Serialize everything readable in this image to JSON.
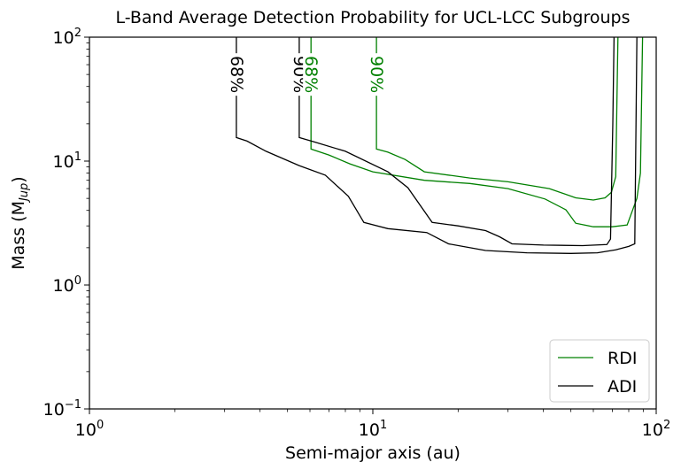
{
  "chart_data": {
    "type": "line",
    "title": "L-Band Average Detection Probability for UCL-LCC Subgroups",
    "xlabel": "Semi-major axis (au)",
    "ylabel_main": "Mass (M",
    "ylabel_sub": "Jup",
    "ylabel_end": ")",
    "xscale": "log",
    "yscale": "log",
    "xlim": [
      1,
      100
    ],
    "ylim": [
      0.1,
      100
    ],
    "x_ticks": [
      {
        "value": 1,
        "base": "10",
        "exp": "0"
      },
      {
        "value": 10,
        "base": "10",
        "exp": "1"
      },
      {
        "value": 100,
        "base": "10",
        "exp": "2"
      }
    ],
    "y_ticks": [
      {
        "value": 0.1,
        "base": "10",
        "exp": "−1"
      },
      {
        "value": 1,
        "base": "10",
        "exp": "0"
      },
      {
        "value": 10,
        "base": "10",
        "exp": "1"
      },
      {
        "value": 100,
        "base": "10",
        "exp": "2"
      }
    ],
    "legend": {
      "placement": "lower-right",
      "entries": [
        {
          "name": "RDI",
          "color": "#008000"
        },
        {
          "name": "ADI",
          "color": "#000000"
        }
      ]
    },
    "series": [
      {
        "name": "RDI",
        "level": "68%",
        "color": "#008000",
        "points": [
          [
            6.05,
            100
          ],
          [
            6.05,
            12.5
          ],
          [
            7.0,
            11.2
          ],
          [
            8.3,
            9.5
          ],
          [
            10.0,
            8.2
          ],
          [
            15.2,
            7.0
          ],
          [
            22.0,
            6.6
          ],
          [
            30.0,
            6.0
          ],
          [
            40.5,
            4.95
          ],
          [
            48.0,
            4.05
          ],
          [
            52.0,
            3.15
          ],
          [
            60.0,
            2.95
          ],
          [
            70.0,
            2.95
          ],
          [
            79.0,
            3.05
          ],
          [
            85.5,
            5.0
          ],
          [
            88.0,
            8.0
          ],
          [
            89.5,
            100
          ]
        ]
      },
      {
        "name": "RDI",
        "level": "90%",
        "color": "#008000",
        "points": [
          [
            10.3,
            100
          ],
          [
            10.3,
            12.5
          ],
          [
            11.3,
            11.8
          ],
          [
            13.0,
            10.3
          ],
          [
            15.2,
            8.2
          ],
          [
            22.0,
            7.3
          ],
          [
            30.0,
            6.8
          ],
          [
            42.0,
            6.0
          ],
          [
            52.0,
            5.05
          ],
          [
            60.0,
            4.85
          ],
          [
            66.0,
            5.05
          ],
          [
            69.5,
            5.6
          ],
          [
            72.0,
            7.5
          ],
          [
            73.3,
            100
          ]
        ]
      },
      {
        "name": "ADI",
        "level": "68%",
        "color": "#000000",
        "points": [
          [
            3.3,
            100
          ],
          [
            3.3,
            15.5
          ],
          [
            3.6,
            14.5
          ],
          [
            4.2,
            12.0
          ],
          [
            5.5,
            9.2
          ],
          [
            6.8,
            7.7
          ],
          [
            8.2,
            5.2
          ],
          [
            9.3,
            3.2
          ],
          [
            11.3,
            2.85
          ],
          [
            15.5,
            2.65
          ],
          [
            18.5,
            2.15
          ],
          [
            25.0,
            1.9
          ],
          [
            35.0,
            1.82
          ],
          [
            50.0,
            1.8
          ],
          [
            62.0,
            1.82
          ],
          [
            72.0,
            1.92
          ],
          [
            80.0,
            2.05
          ],
          [
            84.0,
            2.15
          ],
          [
            85.5,
            100
          ]
        ]
      },
      {
        "name": "ADI",
        "level": "90%",
        "color": "#000000",
        "points": [
          [
            5.5,
            100
          ],
          [
            5.5,
            15.5
          ],
          [
            6.2,
            14.3
          ],
          [
            8.0,
            12.0
          ],
          [
            11.3,
            8.2
          ],
          [
            13.3,
            6.1
          ],
          [
            16.2,
            3.2
          ],
          [
            20.0,
            3.0
          ],
          [
            25.0,
            2.75
          ],
          [
            28.0,
            2.45
          ],
          [
            31.0,
            2.15
          ],
          [
            40.0,
            2.1
          ],
          [
            55.0,
            2.08
          ],
          [
            67.0,
            2.12
          ],
          [
            69.0,
            2.35
          ],
          [
            70.3,
            20.0
          ],
          [
            71.0,
            100
          ]
        ]
      }
    ],
    "contour_labels": [
      {
        "text": "68%",
        "x": 3.3,
        "y": 50,
        "color": "#000000"
      },
      {
        "text": "90%",
        "x": 5.5,
        "y": 50,
        "color": "#000000"
      },
      {
        "text": "68%",
        "x": 6.05,
        "y": 50,
        "color": "#008000"
      },
      {
        "text": "90%",
        "x": 10.3,
        "y": 50,
        "color": "#008000"
      }
    ],
    "grid": false
  }
}
